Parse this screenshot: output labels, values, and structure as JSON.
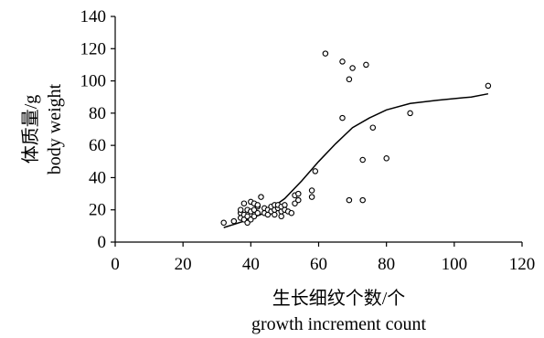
{
  "chart_data": {
    "type": "scatter",
    "title": "",
    "xlabel": "生长细纹个数/个",
    "xlabel_en": "growth increment count",
    "ylabel": "体质量/g",
    "ylabel_en": "body weight",
    "xlim": [
      0,
      120
    ],
    "ylim": [
      0,
      140
    ],
    "x_ticks": [
      "0",
      "20",
      "40",
      "60",
      "80",
      "100",
      "120"
    ],
    "y_ticks": [
      "0",
      "20",
      "40",
      "60",
      "80",
      "100",
      "120",
      "140"
    ],
    "grid": false,
    "legend": "none",
    "marker_color": "#000000",
    "series": [
      {
        "kind": "points",
        "points": [
          [
            32,
            12
          ],
          [
            35,
            13
          ],
          [
            37,
            15
          ],
          [
            37,
            18
          ],
          [
            37,
            20
          ],
          [
            38,
            14
          ],
          [
            38,
            17
          ],
          [
            38,
            24
          ],
          [
            39,
            12
          ],
          [
            39,
            16
          ],
          [
            39,
            20
          ],
          [
            40,
            14
          ],
          [
            40,
            19
          ],
          [
            40,
            25
          ],
          [
            41,
            16
          ],
          [
            41,
            20
          ],
          [
            41,
            24
          ],
          [
            42,
            18
          ],
          [
            42,
            22
          ],
          [
            42,
            23
          ],
          [
            43,
            28
          ],
          [
            44,
            18
          ],
          [
            44,
            21
          ],
          [
            45,
            17
          ],
          [
            45,
            20
          ],
          [
            46,
            19
          ],
          [
            46,
            22
          ],
          [
            47,
            17
          ],
          [
            47,
            20
          ],
          [
            47,
            23
          ],
          [
            48,
            21
          ],
          [
            48,
            23
          ],
          [
            49,
            16
          ],
          [
            49,
            19
          ],
          [
            49,
            22
          ],
          [
            50,
            20
          ],
          [
            50,
            23
          ],
          [
            51,
            19
          ],
          [
            52,
            18
          ],
          [
            53,
            24
          ],
          [
            53,
            29
          ],
          [
            54,
            26
          ],
          [
            54,
            30
          ],
          [
            58,
            28
          ],
          [
            58,
            32
          ],
          [
            59,
            44
          ],
          [
            62,
            117
          ],
          [
            67,
            112
          ],
          [
            67,
            77
          ],
          [
            69,
            26
          ],
          [
            69,
            101
          ],
          [
            70,
            108
          ],
          [
            73,
            26
          ],
          [
            73,
            51
          ],
          [
            74,
            110
          ],
          [
            76,
            71
          ],
          [
            80,
            52
          ],
          [
            87,
            80
          ],
          [
            110,
            97
          ]
        ]
      },
      {
        "kind": "trend-line",
        "points": [
          [
            32,
            9
          ],
          [
            38,
            13
          ],
          [
            44,
            18
          ],
          [
            50,
            27
          ],
          [
            55,
            38
          ],
          [
            60,
            50
          ],
          [
            65,
            61
          ],
          [
            70,
            71
          ],
          [
            75,
            77
          ],
          [
            80,
            82
          ],
          [
            87,
            86
          ],
          [
            95,
            88
          ],
          [
            105,
            90
          ],
          [
            110,
            92
          ]
        ]
      }
    ]
  }
}
